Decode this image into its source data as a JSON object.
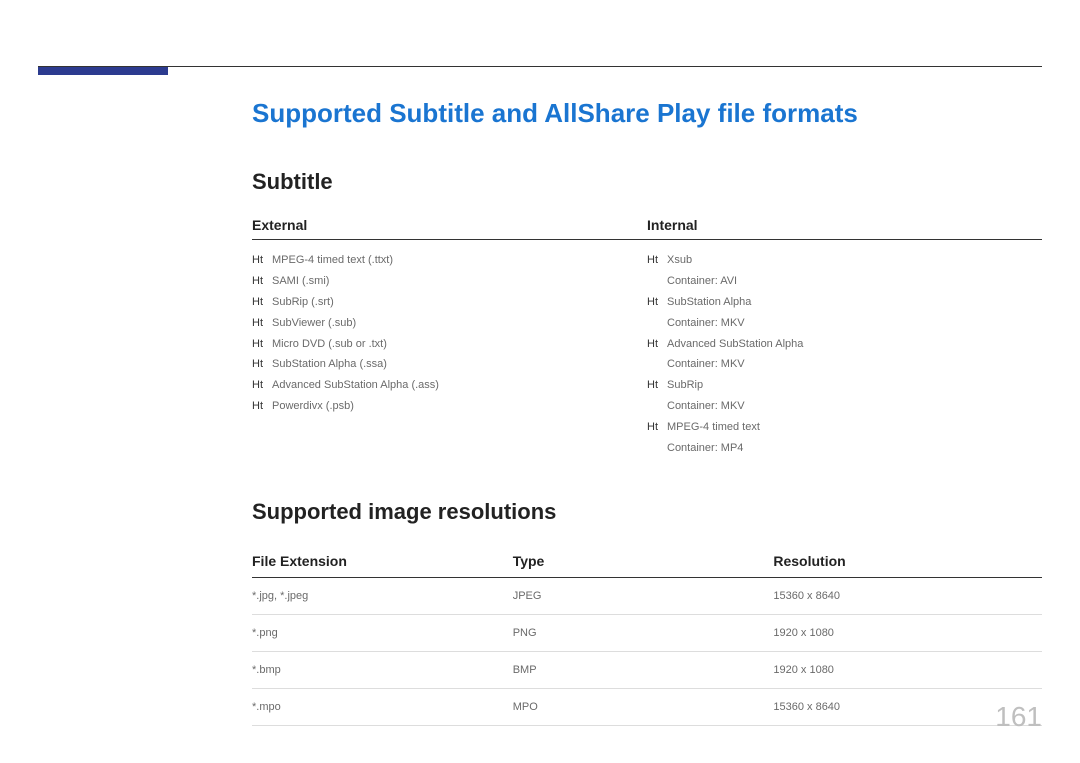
{
  "title": "Supported Subtitle and AllShare Play file formats",
  "subtitle_section": {
    "heading": "Subtitle",
    "external": {
      "header": "External",
      "bullet": "Ht",
      "items": [
        {
          "text": "MPEG-4 timed text (.ttxt)"
        },
        {
          "text": "SAMI (.smi)"
        },
        {
          "text": "SubRip (.srt)"
        },
        {
          "text": "SubViewer (.sub)"
        },
        {
          "text": "Micro DVD (.sub or .txt)"
        },
        {
          "text": "SubStation Alpha (.ssa)"
        },
        {
          "text": "Advanced SubStation Alpha (.ass)"
        },
        {
          "text": "Powerdivx (.psb)"
        }
      ]
    },
    "internal": {
      "header": "Internal",
      "bullet": "Ht",
      "items": [
        {
          "text": "Xsub",
          "sub": "Container: AVI"
        },
        {
          "text": "SubStation Alpha",
          "sub": "Container: MKV"
        },
        {
          "text": "Advanced SubStation Alpha",
          "sub": "Container: MKV"
        },
        {
          "text": "SubRip",
          "sub": "Container: MKV"
        },
        {
          "text": "MPEG-4 timed text",
          "sub": "Container: MP4"
        }
      ]
    }
  },
  "image_section": {
    "heading": "Supported image resolutions",
    "columns": [
      "File Extension",
      "Type",
      "Resolution"
    ],
    "rows": [
      [
        "*.jpg, *.jpeg",
        "JPEG",
        "15360 x 8640"
      ],
      [
        "*.png",
        "PNG",
        "1920 x 1080"
      ],
      [
        "*.bmp",
        "BMP",
        "1920 x 1080"
      ],
      [
        "*.mpo",
        "MPO",
        "15360 x 8640"
      ]
    ]
  },
  "page_number": "161",
  "colors": {
    "accent_bar": "#2c3b8f",
    "title": "#1a75d1",
    "rule": "#333333",
    "page_number": "#bfbfbf",
    "body_text": "#6a6a6a"
  }
}
